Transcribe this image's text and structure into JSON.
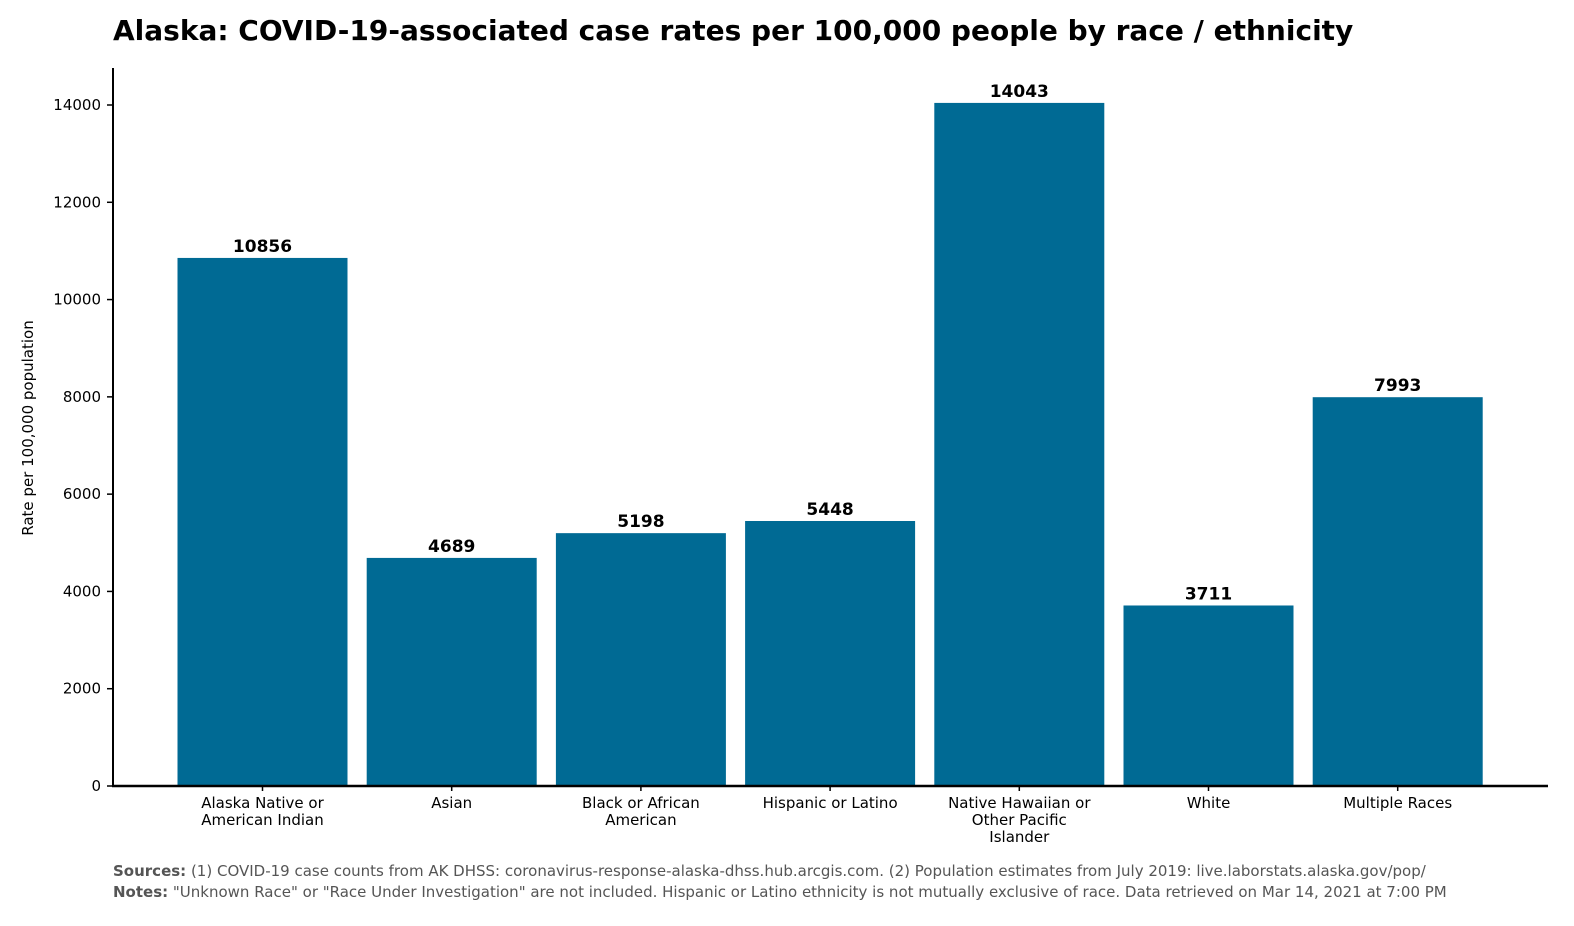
{
  "chart_data": {
    "type": "bar",
    "title": "Alaska: COVID-19-associated case rates per 100,000 people by race / ethnicity",
    "xlabel": "",
    "ylabel": "Rate per 100,000 population",
    "categories": [
      [
        "Alaska Native or",
        "American Indian"
      ],
      [
        "Asian"
      ],
      [
        "Black or African",
        "American"
      ],
      [
        "Hispanic or Latino"
      ],
      [
        "Native Hawaiian or",
        "Other Pacific",
        "Islander"
      ],
      [
        "White"
      ],
      [
        "Multiple Races"
      ]
    ],
    "values": [
      10856,
      4689,
      5198,
      5448,
      14043,
      3711,
      7993
    ],
    "data_labels": [
      "10856",
      "4689",
      "5198",
      "5448",
      "14043",
      "3711",
      "7993"
    ],
    "ylim": [
      0,
      14750
    ],
    "yticks": [
      0,
      2000,
      4000,
      6000,
      8000,
      10000,
      12000,
      14000
    ],
    "ytick_labels": [
      "0",
      "2000",
      "4000",
      "6000",
      "8000",
      "10000",
      "12000",
      "14000"
    ],
    "grid": false,
    "bar_color": "#006a94"
  },
  "footnotes": {
    "sources_label": "Sources:",
    "sources_text": " (1) COVID-19 case counts from AK DHSS: coronavirus-response-alaska-dhss.hub.arcgis.com. (2) Population estimates from July 2019: live.laborstats.alaska.gov/pop/",
    "notes_label": "Notes:",
    "notes_text": " \"Unknown Race\" or \"Race Under Investigation\" are not included. Hispanic or Latino ethnicity is not mutually exclusive of race. Data retrieved on Mar 14, 2021 at 7:00 PM"
  }
}
